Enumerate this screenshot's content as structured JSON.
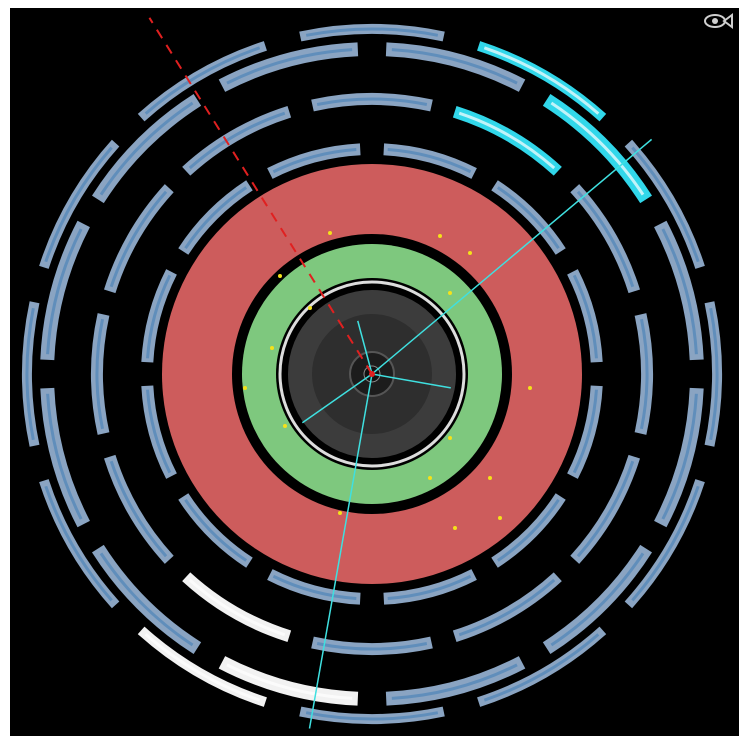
{
  "viewer": {
    "logo_icon": "eye-fish-icon",
    "colors": {
      "background": "#000000",
      "calorimeter_hadronic": "#cd5c5c",
      "calorimeter_em": "#7ec87e",
      "tracker": "#3c3c3c",
      "muon_chamber": "#8aa4c2",
      "muon_chamber_inner": "#4e84b8",
      "muon_chamber_hit": "#31d7ea",
      "muon_chamber_white": "#f2f2f2",
      "track": "#3fe0e0",
      "missing_energy": "#e02020",
      "energy_deposit": "#f4e21a"
    },
    "tracks": [
      {
        "angle_deg": -40
      },
      {
        "angle_deg": 100
      },
      {
        "angle_deg": 10
      },
      {
        "angle_deg": 145
      },
      {
        "angle_deg": -105
      }
    ],
    "missing_energy_angle_deg": -122
  }
}
